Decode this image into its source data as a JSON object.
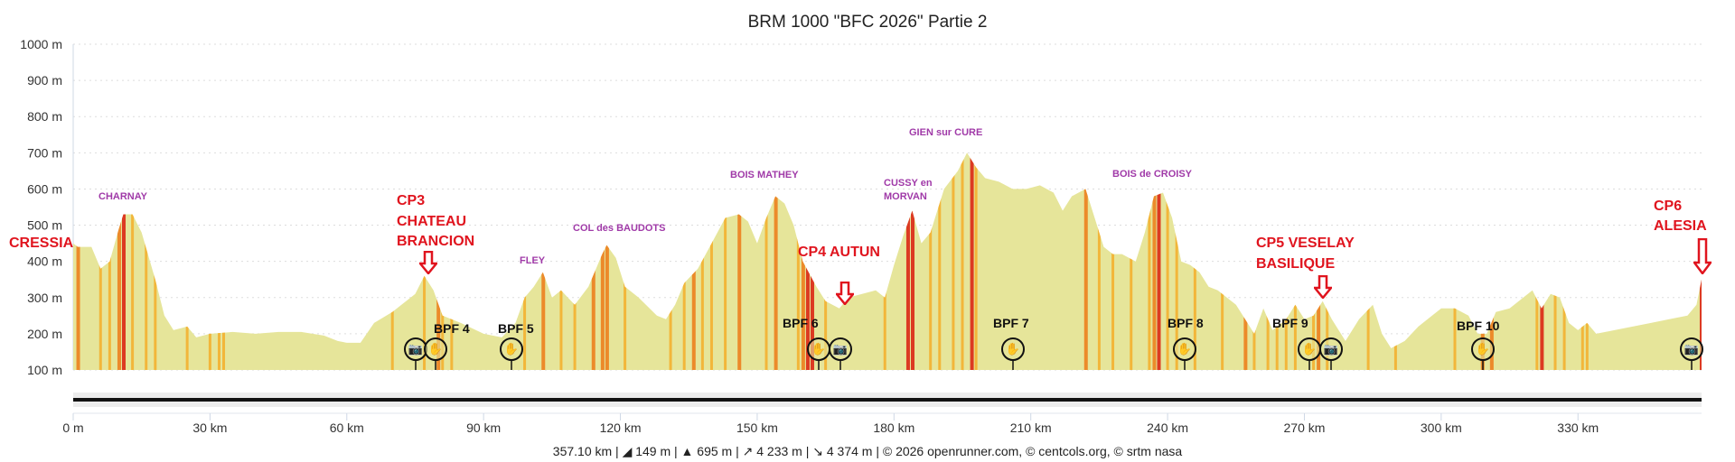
{
  "chart_data": {
    "type": "area",
    "title": "BRM 1000 \"BFC 2026\" Partie 2",
    "xlabel": "",
    "ylabel": "",
    "xlim": [
      0,
      357.1
    ],
    "ylim": [
      100,
      1000
    ],
    "grid": true,
    "y_ticks": [
      "1000 m",
      "900 m",
      "800 m",
      "700 m",
      "600 m",
      "500 m",
      "400 m",
      "300 m",
      "200 m",
      "100 m"
    ],
    "y_tick_values": [
      1000,
      900,
      800,
      700,
      600,
      500,
      400,
      300,
      200,
      100
    ],
    "x_ticks": [
      "0 m",
      "30 km",
      "60 km",
      "90 km",
      "120 km",
      "150 km",
      "180 km",
      "210 km",
      "240 km",
      "270 km",
      "300 km",
      "330 km"
    ],
    "x_tick_values": [
      0,
      30,
      60,
      90,
      120,
      150,
      180,
      210,
      240,
      270,
      300,
      330
    ],
    "profile": [
      [
        0,
        450
      ],
      [
        1,
        440
      ],
      [
        4,
        440
      ],
      [
        6,
        380
      ],
      [
        8,
        400
      ],
      [
        10,
        490
      ],
      [
        11,
        530
      ],
      [
        13,
        530
      ],
      [
        15,
        480
      ],
      [
        18,
        350
      ],
      [
        20,
        250
      ],
      [
        22,
        210
      ],
      [
        25,
        220
      ],
      [
        27,
        190
      ],
      [
        30,
        200
      ],
      [
        35,
        205
      ],
      [
        40,
        200
      ],
      [
        45,
        205
      ],
      [
        50,
        205
      ],
      [
        55,
        195
      ],
      [
        58,
        180
      ],
      [
        60,
        175
      ],
      [
        63,
        175
      ],
      [
        66,
        230
      ],
      [
        70,
        260
      ],
      [
        72,
        280
      ],
      [
        75,
        310
      ],
      [
        77,
        360
      ],
      [
        79,
        320
      ],
      [
        81,
        250
      ],
      [
        85,
        230
      ],
      [
        90,
        200
      ],
      [
        94,
        190
      ],
      [
        97,
        230
      ],
      [
        99,
        300
      ],
      [
        101,
        330
      ],
      [
        103,
        370
      ],
      [
        105,
        300
      ],
      [
        107,
        320
      ],
      [
        110,
        280
      ],
      [
        113,
        330
      ],
      [
        116,
        420
      ],
      [
        117,
        445
      ],
      [
        119,
        410
      ],
      [
        121,
        330
      ],
      [
        124,
        300
      ],
      [
        128,
        250
      ],
      [
        130,
        240
      ],
      [
        132,
        280
      ],
      [
        134,
        340
      ],
      [
        137,
        380
      ],
      [
        140,
        450
      ],
      [
        143,
        520
      ],
      [
        146,
        530
      ],
      [
        148,
        510
      ],
      [
        150,
        450
      ],
      [
        152,
        520
      ],
      [
        154,
        580
      ],
      [
        156,
        560
      ],
      [
        158,
        500
      ],
      [
        160,
        400
      ],
      [
        163,
        330
      ],
      [
        165,
        290
      ],
      [
        168,
        270
      ],
      [
        170,
        300
      ],
      [
        173,
        310
      ],
      [
        176,
        320
      ],
      [
        178,
        300
      ],
      [
        180,
        390
      ],
      [
        182,
        470
      ],
      [
        184,
        540
      ],
      [
        186,
        450
      ],
      [
        188,
        480
      ],
      [
        191,
        600
      ],
      [
        194,
        650
      ],
      [
        196,
        700
      ],
      [
        198,
        660
      ],
      [
        200,
        630
      ],
      [
        203,
        620
      ],
      [
        206,
        600
      ],
      [
        209,
        600
      ],
      [
        212,
        610
      ],
      [
        215,
        590
      ],
      [
        217,
        540
      ],
      [
        219,
        580
      ],
      [
        222,
        600
      ],
      [
        224,
        520
      ],
      [
        226,
        440
      ],
      [
        228,
        420
      ],
      [
        230,
        420
      ],
      [
        233,
        400
      ],
      [
        235,
        480
      ],
      [
        237,
        580
      ],
      [
        239,
        590
      ],
      [
        241,
        520
      ],
      [
        243,
        400
      ],
      [
        245,
        390
      ],
      [
        247,
        370
      ],
      [
        249,
        330
      ],
      [
        251,
        320
      ],
      [
        253,
        300
      ],
      [
        255,
        280
      ],
      [
        257,
        240
      ],
      [
        259,
        200
      ],
      [
        261,
        270
      ],
      [
        263,
        210
      ],
      [
        266,
        240
      ],
      [
        268,
        280
      ],
      [
        270,
        240
      ],
      [
        272,
        250
      ],
      [
        274,
        290
      ],
      [
        276,
        240
      ],
      [
        279,
        180
      ],
      [
        282,
        240
      ],
      [
        285,
        280
      ],
      [
        287,
        200
      ],
      [
        289,
        160
      ],
      [
        292,
        180
      ],
      [
        295,
        220
      ],
      [
        298,
        250
      ],
      [
        300,
        270
      ],
      [
        303,
        270
      ],
      [
        306,
        250
      ],
      [
        308,
        200
      ],
      [
        310,
        200
      ],
      [
        312,
        260
      ],
      [
        315,
        270
      ],
      [
        318,
        300
      ],
      [
        320,
        320
      ],
      [
        322,
        270
      ],
      [
        324,
        310
      ],
      [
        326,
        300
      ],
      [
        328,
        230
      ],
      [
        330,
        210
      ],
      [
        332,
        230
      ],
      [
        334,
        200
      ],
      [
        338,
        210
      ],
      [
        342,
        220
      ],
      [
        346,
        230
      ],
      [
        350,
        240
      ],
      [
        354,
        250
      ],
      [
        356,
        280
      ],
      [
        357.1,
        350
      ]
    ],
    "steep_segments": [
      [
        1,
        "d"
      ],
      [
        6,
        "o"
      ],
      [
        8,
        "o"
      ],
      [
        10,
        "d"
      ],
      [
        11,
        "r"
      ],
      [
        13,
        "o"
      ],
      [
        16,
        "o"
      ],
      [
        18,
        "o"
      ],
      [
        25,
        "o"
      ],
      [
        30,
        "o"
      ],
      [
        32,
        "o"
      ],
      [
        33,
        "o"
      ],
      [
        70,
        "o"
      ],
      [
        77,
        "o"
      ],
      [
        80,
        "d"
      ],
      [
        81,
        "o"
      ],
      [
        83,
        "o"
      ],
      [
        99,
        "o"
      ],
      [
        103,
        "d"
      ],
      [
        107,
        "o"
      ],
      [
        110,
        "o"
      ],
      [
        114,
        "d"
      ],
      [
        116,
        "d"
      ],
      [
        117,
        "d"
      ],
      [
        121,
        "o"
      ],
      [
        131,
        "o"
      ],
      [
        134,
        "o"
      ],
      [
        136,
        "d"
      ],
      [
        138,
        "o"
      ],
      [
        140,
        "o"
      ],
      [
        143,
        "o"
      ],
      [
        146,
        "d"
      ],
      [
        152,
        "o"
      ],
      [
        154,
        "d"
      ],
      [
        159,
        "o"
      ],
      [
        160,
        "d"
      ],
      [
        161,
        "r"
      ],
      [
        162,
        "r"
      ],
      [
        165,
        "o"
      ],
      [
        178,
        "o"
      ],
      [
        183,
        "r"
      ],
      [
        184,
        "r"
      ],
      [
        188,
        "o"
      ],
      [
        190,
        "o"
      ],
      [
        193,
        "o"
      ],
      [
        195,
        "o"
      ],
      [
        197,
        "r"
      ],
      [
        198,
        "o"
      ],
      [
        222,
        "d"
      ],
      [
        225,
        "o"
      ],
      [
        228,
        "o"
      ],
      [
        232,
        "o"
      ],
      [
        236,
        "o"
      ],
      [
        237,
        "d"
      ],
      [
        238,
        "r"
      ],
      [
        240,
        "o"
      ],
      [
        242,
        "o"
      ],
      [
        246,
        "o"
      ],
      [
        252,
        "o"
      ],
      [
        257,
        "d"
      ],
      [
        259,
        "o"
      ],
      [
        262,
        "o"
      ],
      [
        264,
        "o"
      ],
      [
        266,
        "o"
      ],
      [
        268,
        "o"
      ],
      [
        272,
        "o"
      ],
      [
        273,
        "d"
      ],
      [
        275,
        "o"
      ],
      [
        284,
        "o"
      ],
      [
        290,
        "o"
      ],
      [
        303,
        "o"
      ],
      [
        309,
        "d"
      ],
      [
        311,
        "d"
      ],
      [
        321,
        "o"
      ],
      [
        322,
        "r"
      ],
      [
        325,
        "o"
      ],
      [
        327,
        "o"
      ],
      [
        331,
        "o"
      ],
      [
        332,
        "o"
      ],
      [
        357,
        "r"
      ]
    ],
    "annotations": {
      "places": [
        "CHARNAY",
        "COL des BAUDOTS",
        "FLEY",
        "BOIS MATHEY",
        "GIEN sur CURE",
        "CUSSY en",
        "MORVAN",
        "BOIS de CROISY"
      ],
      "controls": [
        "CRESSIA",
        "CP3",
        "CHATEAU",
        "BRANCION",
        "CP4 AUTUN",
        "CP5 VESELAY",
        "BASILIQUE",
        "CP6",
        "ALESIA"
      ],
      "bpf": [
        "BPF 4",
        "BPF 5",
        "BPF 6",
        "BPF 7",
        "BPF 8",
        "BPF 9",
        "BPF 10"
      ]
    }
  },
  "colors": {
    "fill": "#e6e59a",
    "o": "#f2b63a",
    "d": "#ec8a2a",
    "r": "#dc3a22",
    "grid": "#dddddd"
  },
  "icons": {
    "camera": "📷",
    "hand": "✋"
  },
  "footer": "357.10 km | ◢ 149 m | ▲ 695 m | ↗ 4 233 m | ↘ 4 374 m | © 2026 openrunner.com, © centcols.org, © srtm nasa"
}
